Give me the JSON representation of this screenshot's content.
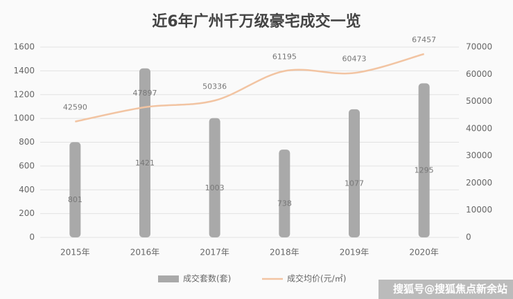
{
  "chart_data": {
    "type": "combo",
    "title": "近6年广州千万级豪宅成交一览",
    "categories": [
      "2015年",
      "2016年",
      "2017年",
      "2018年",
      "2019年",
      "2020年"
    ],
    "series": [
      {
        "name": "成交套数(套)",
        "color": "#a9a9a9",
        "values": [
          801,
          1421,
          1003,
          738,
          1077,
          1295
        ]
      },
      {
        "name": "成交均价(元/㎡)",
        "color": "#f2c4a2",
        "axis": "y2",
        "values": [
          42590,
          47897,
          50336,
          61195,
          60473,
          67457
        ]
      }
    ],
    "ylim": [
      0,
      1600
    ],
    "yticks": [
      0,
      200,
      400,
      600,
      800,
      1000,
      1200,
      1400,
      1600
    ],
    "y2lim": [
      0,
      70000
    ],
    "y2ticks": [
      0,
      10000,
      20000,
      30000,
      40000,
      50000,
      60000,
      70000
    ],
    "legend": "bottom",
    "annotation": "搜狐号@搜狐焦点新余站"
  }
}
